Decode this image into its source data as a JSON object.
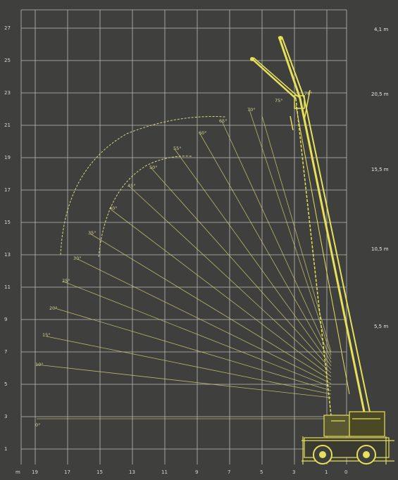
{
  "colors": {
    "background": "#3f3f3d",
    "grid": "#d0d0c8",
    "crane": "#e6e05a",
    "arc": "#d8d680",
    "ray": "#cfcc70",
    "text": "#e0e0d8"
  },
  "y_axis": {
    "ticks": [
      "27",
      "25",
      "23",
      "21",
      "19",
      "17",
      "15",
      "13",
      "11",
      "9",
      "7",
      "5",
      "3",
      "1"
    ]
  },
  "x_axis": {
    "ticks": [
      "m",
      "19",
      "17",
      "15",
      "13",
      "11",
      "9",
      "7",
      "5",
      "3",
      "1",
      "0"
    ]
  },
  "right_labels": [
    "4,1 m",
    "20,5 m",
    "15,5 m",
    "10,5 m",
    "5,5 m"
  ],
  "angle_labels": [
    "0°",
    "10°",
    "15°",
    "20°",
    "25°",
    "30°",
    "35°",
    "40°",
    "45°",
    "50°",
    "55°",
    "60°",
    "65°",
    "70°",
    "75°",
    "78°"
  ]
}
